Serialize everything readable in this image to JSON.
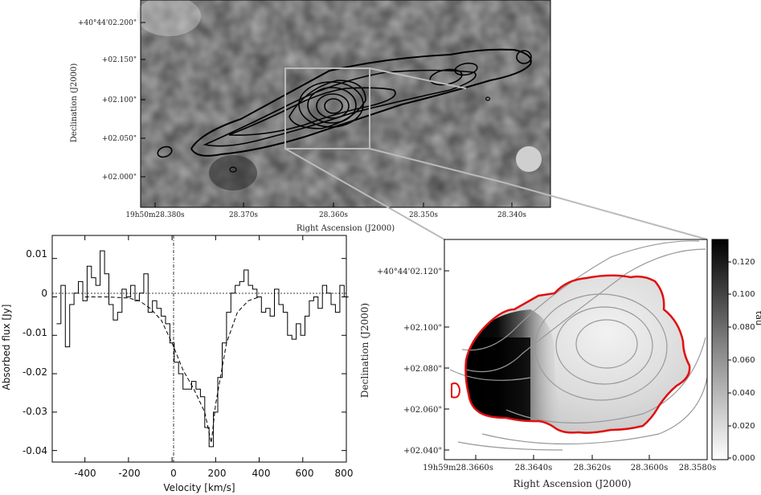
{
  "top_panel": {
    "xlabel": "Right Ascension (J2000)",
    "ylabel": "Declination (J2000)",
    "x_ticks": [
      "19h50m28.380s",
      "28.370s",
      "28.360s",
      "28.350s",
      "28.340s"
    ],
    "y_ticks": [
      "+40°44'02.200\"",
      "+02.150\"",
      "+02.100\"",
      "+02.050\"",
      "+02.000\""
    ]
  },
  "spectrum_panel": {
    "xlabel": "Velocity [km/s]",
    "ylabel": "Absorbed flux [Jy]",
    "x_ticks": [
      "-400",
      "-200",
      "0",
      "200",
      "400",
      "600",
      "800"
    ],
    "y_ticks": [
      "0.01",
      "0",
      "-0.01",
      "-0.02",
      "-0.03",
      "-0.04"
    ]
  },
  "tau_panel": {
    "xlabel": "Right Ascension (J2000)",
    "ylabel": "Declination (J2000)",
    "x_ticks": [
      "19h59m28.3660s",
      "28.3640s",
      "28.3620s",
      "28.3600s",
      "28.3580s"
    ],
    "y_ticks": [
      "+40°44'02.120\"",
      "+02.100\"",
      "+02.080\"",
      "+02.060\"",
      "+02.040\""
    ],
    "colorbar_label": "tau",
    "colorbar_ticks": [
      "0.120",
      "0.100",
      "0.080",
      "0.060",
      "0.040",
      "0.020",
      "0.000"
    ]
  },
  "chart_data": [
    {
      "type": "line",
      "xlabel": "Velocity [km/s]",
      "ylabel": "Absorbed flux [Jy]",
      "xlim": [
        -550,
        800
      ],
      "ylim": [
        -0.043,
        0.016
      ],
      "series": [
        {
          "x": [
            -520,
            -500,
            -480,
            -460,
            -440,
            -420,
            -400,
            -380,
            -360,
            -340,
            -320,
            -300,
            -280,
            -260,
            -240,
            -220,
            -200,
            -180,
            -160,
            -140,
            -120,
            -100,
            -80,
            -60,
            -40,
            -20,
            0,
            20,
            40,
            60,
            80,
            100,
            120,
            140,
            160,
            180,
            200,
            220,
            240,
            260,
            280,
            300,
            320,
            340,
            360,
            380,
            400,
            420,
            440,
            460,
            480,
            500,
            520,
            540,
            560,
            580,
            600,
            620,
            640,
            660,
            680,
            700,
            720,
            740,
            760,
            780,
            800
          ],
          "y": [
            -0.007,
            0.003,
            -0.013,
            -0.002,
            0.001,
            0.004,
            -0.001,
            0.008,
            0.005,
            0.003,
            0.012,
            0.006,
            -0.002,
            -0.006,
            -0.004,
            0.002,
            0.0,
            0.003,
            -0.001,
            0.001,
            0.006,
            -0.004,
            -0.001,
            -0.003,
            -0.005,
            -0.007,
            -0.012,
            -0.017,
            -0.02,
            -0.024,
            -0.024,
            -0.022,
            -0.024,
            -0.026,
            -0.034,
            -0.039,
            -0.03,
            -0.021,
            -0.012,
            -0.004,
            0.001,
            0.003,
            0.004,
            0.007,
            0.003,
            0.002,
            0.0,
            -0.004,
            -0.003,
            -0.005,
            0.002,
            -0.002,
            -0.004,
            -0.01,
            -0.011,
            -0.007,
            -0.01,
            -0.005,
            -0.001,
            0.0,
            -0.003,
            0.003,
            0.001,
            -0.002,
            -0.004,
            0.003,
            0.0
          ]
        },
        {
          "x": [
            -400,
            -300,
            -200,
            -150,
            -100,
            -50,
            0,
            50,
            100,
            150,
            180,
            200,
            250,
            300,
            350,
            400
          ],
          "y": [
            0,
            0,
            -0.0003,
            -0.001,
            -0.003,
            -0.006,
            -0.012,
            -0.019,
            -0.024,
            -0.03,
            -0.038,
            -0.028,
            -0.012,
            -0.004,
            -0.001,
            0
          ]
        }
      ]
    },
    {
      "type": "heatmap",
      "xlabel": "Right Ascension (J2000)",
      "ylabel": "Declination (J2000)",
      "colorbar": {
        "label": "tau",
        "range": [
          0.0,
          0.13
        ]
      }
    }
  ]
}
